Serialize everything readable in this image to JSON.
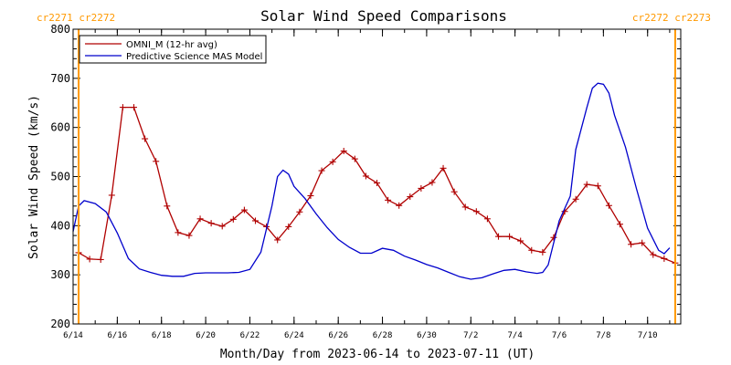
{
  "chart_data": {
    "type": "line",
    "title": "Solar Wind Speed Comparisons",
    "xlabel": "Month/Day from 2023-06-14 to 2023-07-11 (UT)",
    "ylabel": "Solar Wind Speed (km/s)",
    "ylim": [
      200,
      800
    ],
    "yticks": [
      200,
      300,
      400,
      500,
      600,
      700,
      800
    ],
    "xlim": [
      "2023-06-14T00:00",
      "2023-07-11T12:00"
    ],
    "xticks": [
      {
        "x": "2023-06-14",
        "label": "6/14"
      },
      {
        "x": "2023-06-16",
        "label": "6/16"
      },
      {
        "x": "2023-06-18",
        "label": "6/18"
      },
      {
        "x": "2023-06-20",
        "label": "6/20"
      },
      {
        "x": "2023-06-22",
        "label": "6/22"
      },
      {
        "x": "2023-06-24",
        "label": "6/24"
      },
      {
        "x": "2023-06-26",
        "label": "6/26"
      },
      {
        "x": "2023-06-28",
        "label": "6/28"
      },
      {
        "x": "2023-06-30",
        "label": "6/30"
      },
      {
        "x": "2023-07-02",
        "label": "7/2"
      },
      {
        "x": "2023-07-04",
        "label": "7/4"
      },
      {
        "x": "2023-07-06",
        "label": "7/6"
      },
      {
        "x": "2023-07-08",
        "label": "7/8"
      },
      {
        "x": "2023-07-10",
        "label": "7/10"
      }
    ],
    "legend_position": "top-left",
    "colors": {
      "omni": "#b00000",
      "mas": "#0000cc",
      "cr": "#ff9900"
    },
    "carrington_labels": [
      {
        "x": "2023-06-14T00:00",
        "text": "cr2271 cr2272",
        "align": "left"
      },
      {
        "x": "2023-07-11T12:00",
        "text": "cr2272 cr2273",
        "align": "right"
      }
    ],
    "carrington_lines": [
      "2023-06-14T06:00",
      "2023-07-11T06:00"
    ],
    "series": [
      {
        "name": "OMNI_M (12-hr avg)",
        "color": "#b00000",
        "markers": "plus",
        "points": [
          [
            "2023-06-14T06:00",
            345
          ],
          [
            "2023-06-14T18:00",
            332
          ],
          [
            "2023-06-15T06:00",
            331
          ],
          [
            "2023-06-15T18:00",
            462
          ],
          [
            "2023-06-16T06:00",
            641
          ],
          [
            "2023-06-16T18:00",
            641
          ],
          [
            "2023-06-17T06:00",
            577
          ],
          [
            "2023-06-17T18:00",
            531
          ],
          [
            "2023-06-18T06:00",
            440
          ],
          [
            "2023-06-18T18:00",
            386
          ],
          [
            "2023-06-19T06:00",
            380
          ],
          [
            "2023-06-19T18:00",
            414
          ],
          [
            "2023-06-20T06:00",
            405
          ],
          [
            "2023-06-20T18:00",
            399
          ],
          [
            "2023-06-21T06:00",
            413
          ],
          [
            "2023-06-21T18:00",
            432
          ],
          [
            "2023-06-22T06:00",
            410
          ],
          [
            "2023-06-22T18:00",
            398
          ],
          [
            "2023-06-23T06:00",
            371
          ],
          [
            "2023-06-23T18:00",
            398
          ],
          [
            "2023-06-24T06:00",
            428
          ],
          [
            "2023-06-24T18:00",
            461
          ],
          [
            "2023-06-25T06:00",
            512
          ],
          [
            "2023-06-25T18:00",
            530
          ],
          [
            "2023-06-26T06:00",
            552
          ],
          [
            "2023-06-26T18:00",
            536
          ],
          [
            "2023-06-27T06:00",
            501
          ],
          [
            "2023-06-27T18:00",
            487
          ],
          [
            "2023-06-28T06:00",
            452
          ],
          [
            "2023-06-28T18:00",
            441
          ],
          [
            "2023-06-29T06:00",
            459
          ],
          [
            "2023-06-29T18:00",
            476
          ],
          [
            "2023-06-30T06:00",
            488
          ],
          [
            "2023-06-30T18:00",
            517
          ],
          [
            "2023-07-01T06:00",
            469
          ],
          [
            "2023-07-01T18:00",
            438
          ],
          [
            "2023-07-02T06:00",
            429
          ],
          [
            "2023-07-02T18:00",
            414
          ],
          [
            "2023-07-03T06:00",
            378
          ],
          [
            "2023-07-03T18:00",
            378
          ],
          [
            "2023-07-04T06:00",
            369
          ],
          [
            "2023-07-04T18:00",
            350
          ],
          [
            "2023-07-05T06:00",
            346
          ],
          [
            "2023-07-05T18:00",
            376
          ],
          [
            "2023-07-06T06:00",
            429
          ],
          [
            "2023-07-06T18:00",
            454
          ],
          [
            "2023-07-07T06:00",
            484
          ],
          [
            "2023-07-07T18:00",
            481
          ],
          [
            "2023-07-08T06:00",
            441
          ],
          [
            "2023-07-08T18:00",
            403
          ],
          [
            "2023-07-09T06:00",
            362
          ],
          [
            "2023-07-09T18:00",
            365
          ],
          [
            "2023-07-10T06:00",
            341
          ],
          [
            "2023-07-10T18:00",
            333
          ],
          [
            "2023-07-11T06:00",
            324
          ]
        ]
      },
      {
        "name": "Predictive Science MAS Model",
        "color": "#0000cc",
        "markers": "none",
        "points": [
          [
            "2023-06-14T00:00",
            388
          ],
          [
            "2023-06-14T06:00",
            440
          ],
          [
            "2023-06-14T12:00",
            451
          ],
          [
            "2023-06-15T00:00",
            445
          ],
          [
            "2023-06-15T12:00",
            428
          ],
          [
            "2023-06-16T00:00",
            385
          ],
          [
            "2023-06-16T12:00",
            333
          ],
          [
            "2023-06-17T00:00",
            312
          ],
          [
            "2023-06-17T12:00",
            305
          ],
          [
            "2023-06-18T00:00",
            299
          ],
          [
            "2023-06-18T12:00",
            297
          ],
          [
            "2023-06-19T00:00",
            297
          ],
          [
            "2023-06-19T12:00",
            303
          ],
          [
            "2023-06-20T00:00",
            304
          ],
          [
            "2023-06-21T00:00",
            304
          ],
          [
            "2023-06-21T12:00",
            305
          ],
          [
            "2023-06-22T00:00",
            311
          ],
          [
            "2023-06-22T12:00",
            346
          ],
          [
            "2023-06-23T00:00",
            440
          ],
          [
            "2023-06-23T06:00",
            500
          ],
          [
            "2023-06-23T12:00",
            513
          ],
          [
            "2023-06-23T18:00",
            505
          ],
          [
            "2023-06-24T00:00",
            480
          ],
          [
            "2023-06-24T12:00",
            455
          ],
          [
            "2023-06-25T00:00",
            424
          ],
          [
            "2023-06-25T12:00",
            396
          ],
          [
            "2023-06-26T00:00",
            372
          ],
          [
            "2023-06-26T12:00",
            356
          ],
          [
            "2023-06-27T00:00",
            344
          ],
          [
            "2023-06-27T12:00",
            344
          ],
          [
            "2023-06-28T00:00",
            354
          ],
          [
            "2023-06-28T12:00",
            350
          ],
          [
            "2023-06-29T00:00",
            338
          ],
          [
            "2023-06-29T12:00",
            330
          ],
          [
            "2023-06-30T00:00",
            321
          ],
          [
            "2023-06-30T12:00",
            314
          ],
          [
            "2023-07-01T00:00",
            305
          ],
          [
            "2023-07-01T12:00",
            296
          ],
          [
            "2023-07-02T00:00",
            291
          ],
          [
            "2023-07-02T12:00",
            294
          ],
          [
            "2023-07-03T00:00",
            302
          ],
          [
            "2023-07-03T12:00",
            309
          ],
          [
            "2023-07-04T00:00",
            311
          ],
          [
            "2023-07-04T12:00",
            306
          ],
          [
            "2023-07-05T00:00",
            303
          ],
          [
            "2023-07-05T06:00",
            305
          ],
          [
            "2023-07-05T12:00",
            320
          ],
          [
            "2023-07-06T00:00",
            410
          ],
          [
            "2023-07-06T12:00",
            460
          ],
          [
            "2023-07-06T18:00",
            555
          ],
          [
            "2023-07-07T06:00",
            640
          ],
          [
            "2023-07-07T12:00",
            680
          ],
          [
            "2023-07-07T18:00",
            690
          ],
          [
            "2023-07-08T00:00",
            688
          ],
          [
            "2023-07-08T06:00",
            670
          ],
          [
            "2023-07-08T12:00",
            625
          ],
          [
            "2023-07-09T00:00",
            560
          ],
          [
            "2023-07-09T12:00",
            475
          ],
          [
            "2023-07-10T00:00",
            395
          ],
          [
            "2023-07-10T12:00",
            350
          ],
          [
            "2023-07-10T18:00",
            343
          ],
          [
            "2023-07-11T00:00",
            355
          ]
        ]
      }
    ]
  }
}
